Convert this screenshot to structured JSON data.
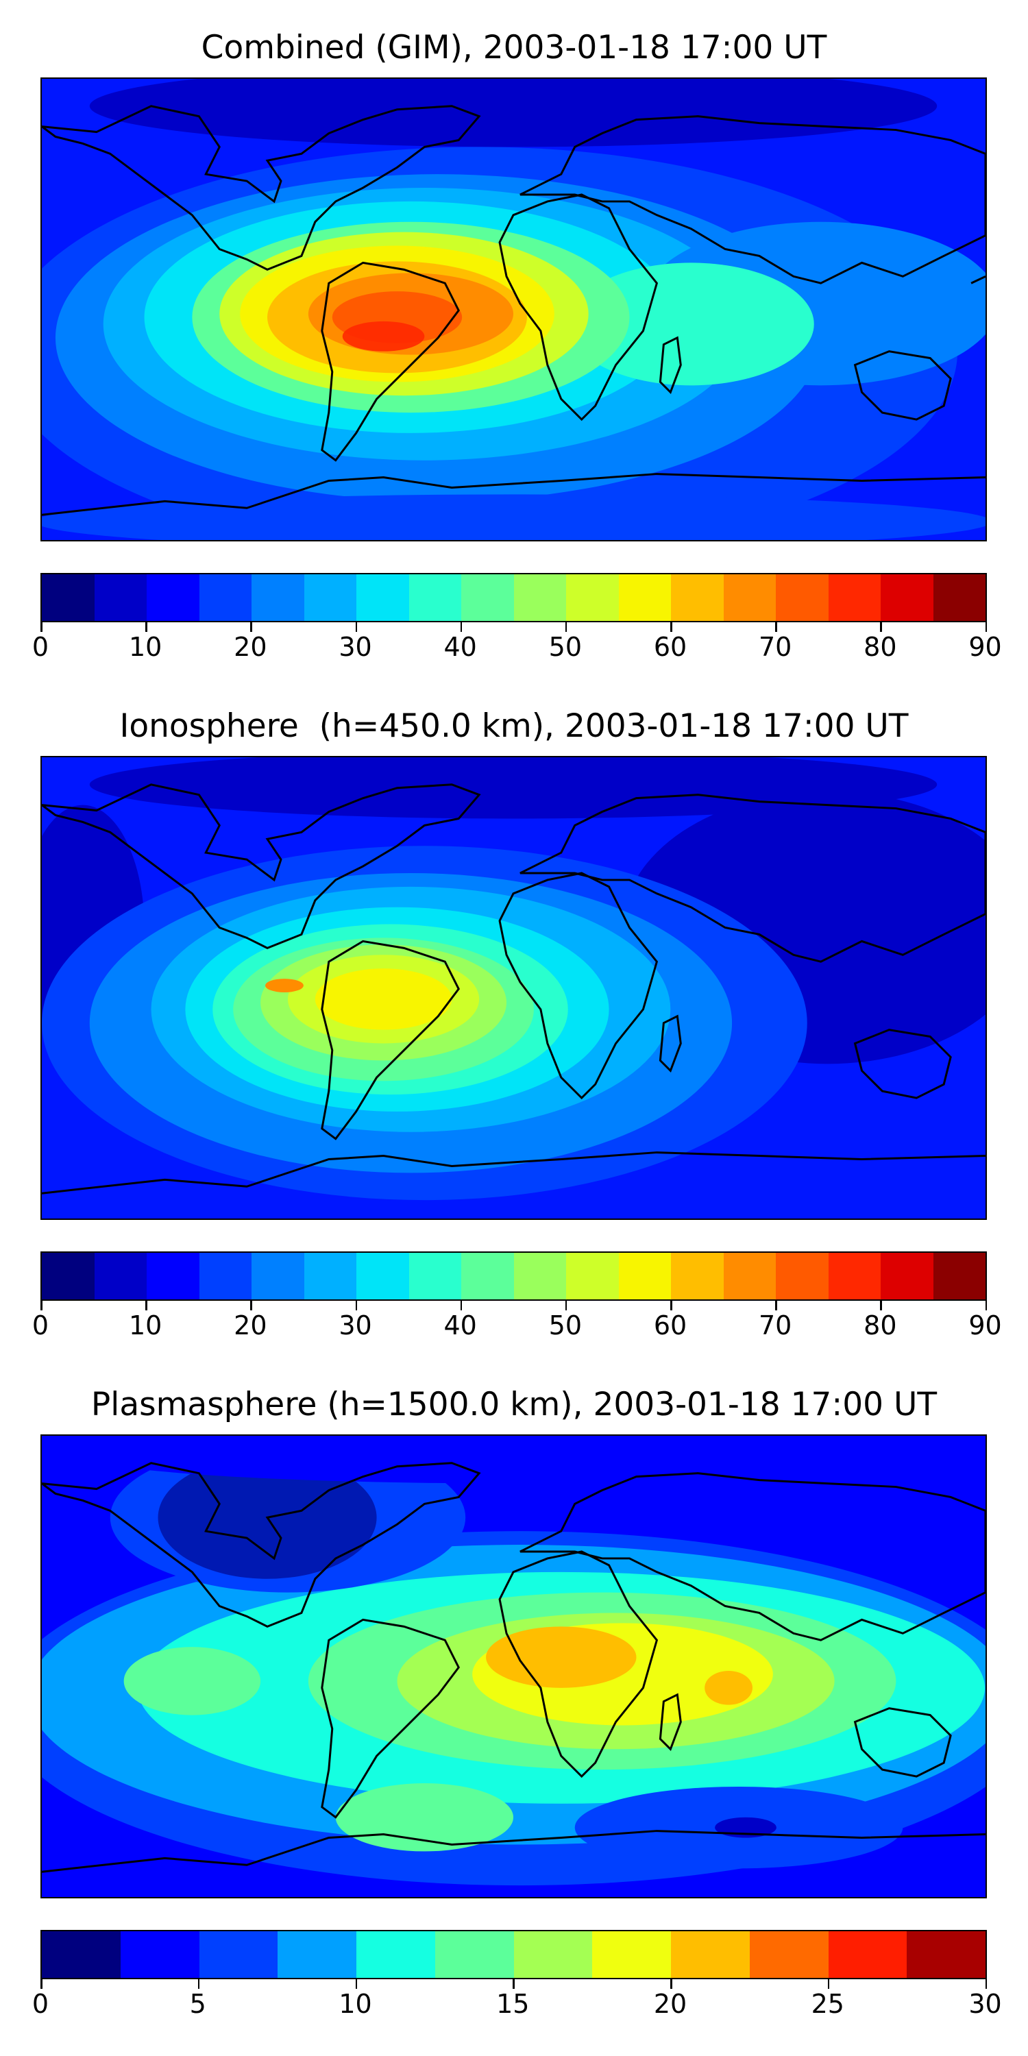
{
  "panels": [
    {
      "title": "Combined (GIM), 2003-01-18 17:00 UT",
      "colorbar": {
        "colors": [
          "#00007f",
          "#0000c8",
          "#0000ff",
          "#0040ff",
          "#0080ff",
          "#00b0ff",
          "#00e4f8",
          "#29ffce",
          "#5cff9a",
          "#9aff5c",
          "#ceff29",
          "#f8f500",
          "#ffbe00",
          "#ff8c00",
          "#ff5a00",
          "#ff2800",
          "#dd0000",
          "#8b0000"
        ],
        "ticks": [
          "0",
          "10",
          "20",
          "30",
          "40",
          "50",
          "60",
          "70",
          "80",
          "90"
        ]
      }
    },
    {
      "title": "Ionosphere  (h=450.0 km), 2003-01-18 17:00 UT",
      "colorbar": {
        "colors": [
          "#00007f",
          "#0000c8",
          "#0000ff",
          "#0040ff",
          "#0080ff",
          "#00b0ff",
          "#00e4f8",
          "#29ffce",
          "#5cff9a",
          "#9aff5c",
          "#ceff29",
          "#f8f500",
          "#ffbe00",
          "#ff8c00",
          "#ff5a00",
          "#ff2800",
          "#dd0000",
          "#8b0000"
        ],
        "ticks": [
          "0",
          "10",
          "20",
          "30",
          "40",
          "50",
          "60",
          "70",
          "80",
          "90"
        ]
      }
    },
    {
      "title": "Plasmasphere (h=1500.0 km), 2003-01-18 17:00 UT",
      "colorbar": {
        "colors": [
          "#00007f",
          "#0000ff",
          "#0040ff",
          "#00a0ff",
          "#15ffe1",
          "#5cff9a",
          "#a4ff53",
          "#f0ff0f",
          "#ffbe00",
          "#ff6a00",
          "#ff1e00",
          "#a80000"
        ],
        "ticks": [
          "0",
          "5",
          "10",
          "15",
          "20",
          "25",
          "30"
        ]
      }
    }
  ]
}
